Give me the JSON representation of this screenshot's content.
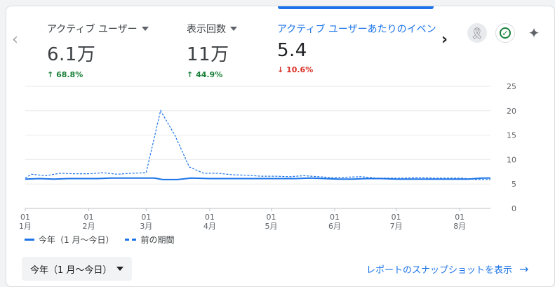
{
  "metrics": [
    {
      "label": "アクティブ ユーザー",
      "value": "6.1万",
      "change": "68.8%",
      "direction_icon": "arrow-up-icon"
    },
    {
      "label": "表示回数",
      "value": "11万",
      "change": "44.9%",
      "direction_icon": "arrow-up-icon"
    },
    {
      "label": "アクティブ ユーザーあたりのイベン",
      "value": "5.4",
      "change": "10.6%",
      "direction_icon": "arrow-down-icon"
    }
  ],
  "icons": {
    "award": "award-icon",
    "check": "check-circle-icon",
    "sparkle": "sparkle-icon"
  },
  "legend": {
    "current": "今年（1 月～今日）",
    "previous": "前の期間"
  },
  "date_range": {
    "selected": "今年（1 月～今日）"
  },
  "report_link": "レポートのスナップショットを表示",
  "colors": {
    "accent": "#1a73e8",
    "up": "#188038",
    "down": "#d93025"
  },
  "chart_data": {
    "type": "line",
    "ylim": [
      0,
      25
    ],
    "yticks": [
      0,
      5,
      10,
      15,
      20,
      25
    ],
    "y_axis_side": "right",
    "grid": true,
    "xticks": [
      {
        "day": "01",
        "month": "1月",
        "x": 0
      },
      {
        "day": "01",
        "month": "2月",
        "x": 31
      },
      {
        "day": "01",
        "month": "3月",
        "x": 59
      },
      {
        "day": "01",
        "month": "4月",
        "x": 90
      },
      {
        "day": "01",
        "month": "5月",
        "x": 120
      },
      {
        "day": "01",
        "month": "6月",
        "x": 151
      },
      {
        "day": "01",
        "month": "7月",
        "x": 181
      },
      {
        "day": "01",
        "month": "8月",
        "x": 212
      }
    ],
    "x_max": 227,
    "series": [
      {
        "name": "今年（1 月～今日）",
        "style": "solid",
        "x": [
          0,
          7,
          14,
          21,
          28,
          35,
          42,
          49,
          56,
          63,
          67,
          74,
          81,
          90,
          97,
          104,
          111,
          118,
          125,
          132,
          139,
          146,
          153,
          160,
          167,
          174,
          181,
          188,
          195,
          202,
          209,
          216,
          223,
          227
        ],
        "y": [
          6.0,
          6.1,
          6.0,
          6.1,
          6.1,
          6.1,
          6.2,
          6.2,
          6.2,
          6.2,
          5.9,
          5.9,
          6.2,
          6.1,
          6.1,
          6.1,
          6.1,
          6.1,
          6.1,
          6.1,
          6.2,
          6.1,
          6.0,
          6.0,
          6.1,
          6.1,
          6.0,
          6.0,
          6.0,
          6.0,
          6.0,
          6.0,
          6.2,
          6.2
        ]
      },
      {
        "name": "前の期間",
        "style": "dashed",
        "x": [
          0,
          3,
          10,
          17,
          24,
          31,
          38,
          45,
          52,
          59,
          66,
          73,
          80,
          87,
          94,
          101,
          108,
          115,
          122,
          129,
          136,
          143,
          150,
          157,
          164,
          171,
          178,
          185,
          192,
          199,
          206,
          213,
          220,
          227
        ],
        "y": [
          6.2,
          7.0,
          6.7,
          7.2,
          7.1,
          7.1,
          7.3,
          7.0,
          7.2,
          7.3,
          20.0,
          15.0,
          8.5,
          7.2,
          7.2,
          6.9,
          6.8,
          6.6,
          6.6,
          6.5,
          6.7,
          6.5,
          6.3,
          6.4,
          6.5,
          6.2,
          6.2,
          6.2,
          6.3,
          6.2,
          6.2,
          6.2,
          5.9,
          5.9
        ]
      }
    ]
  }
}
